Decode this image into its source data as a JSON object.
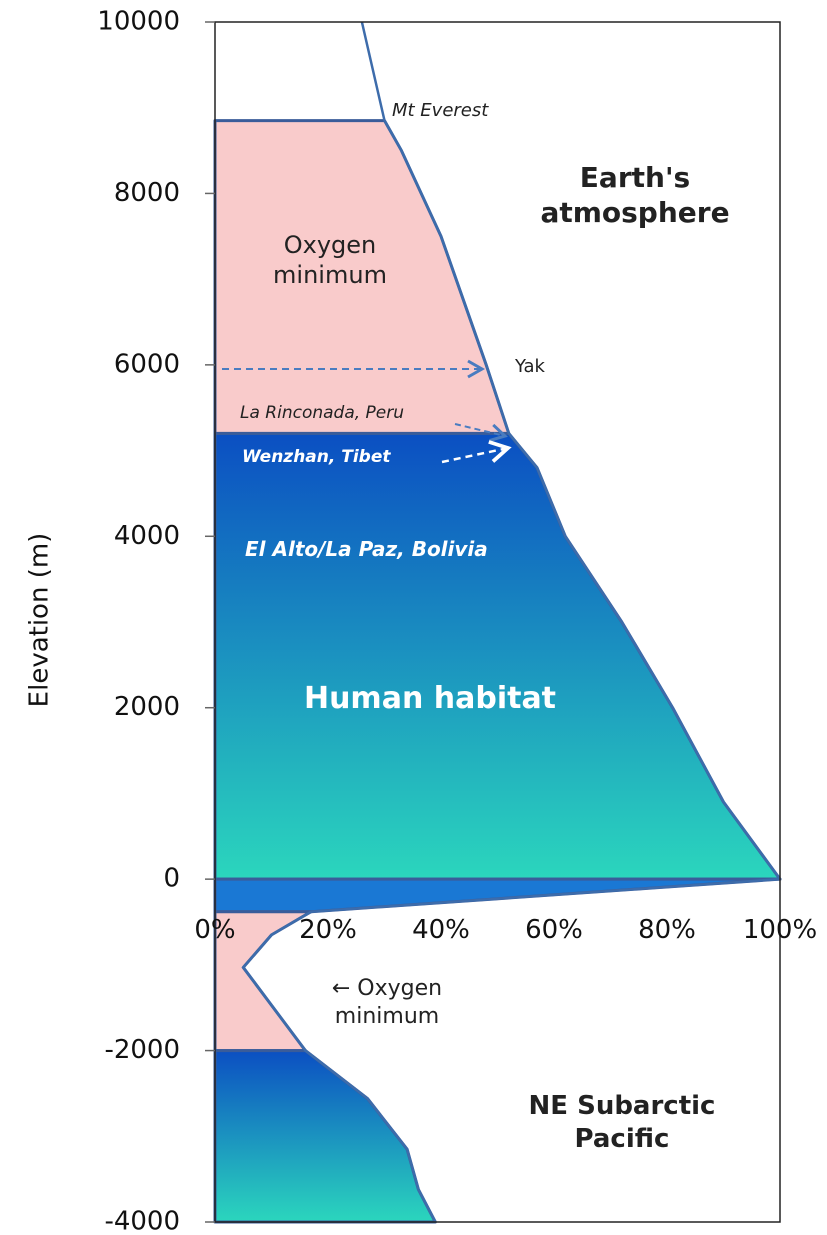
{
  "chart_data": {
    "type": "profile",
    "y_label": "Elevation (m)",
    "xlim": [
      0,
      100
    ],
    "ylim": [
      -4000,
      10000
    ],
    "xticks": [
      {
        "value": 0,
        "label": "0%"
      },
      {
        "value": 20,
        "label": "20%"
      },
      {
        "value": 40,
        "label": "40%"
      },
      {
        "value": 60,
        "label": "60%"
      },
      {
        "value": 80,
        "label": "80%"
      },
      {
        "value": 100,
        "label": "100%"
      }
    ],
    "yticks": [
      10000,
      8000,
      6000,
      4000,
      2000,
      0,
      -2000,
      -4000
    ],
    "series": [
      {
        "color": "#3d6cab",
        "x": [
          100,
          90,
          81,
          72,
          62,
          57,
          52,
          48,
          40,
          33,
          30,
          26
        ],
        "values": [
          0,
          900,
          2000,
          3000,
          4000,
          4800,
          5200,
          6000,
          7500,
          8500,
          8850,
          10000
        ]
      },
      {
        "color": "#3d6cab",
        "x": [
          100,
          17,
          10,
          5,
          16,
          27,
          34,
          36,
          39
        ],
        "values": [
          0,
          -380,
          -650,
          -1030,
          -2000,
          -2560,
          -3150,
          -3620,
          -4000
        ]
      }
    ],
    "bands": [
      {
        "series": 0,
        "from": 0,
        "to": 5200,
        "colors": [
          "#0b4fc2",
          "#2bd6bd"
        ]
      },
      {
        "series": 0,
        "from": 5200,
        "to": 8850,
        "colors": [
          "#f9cbcb"
        ]
      },
      {
        "series": 1,
        "from": 0,
        "to": -380,
        "colors": [
          "#1a78d4"
        ]
      },
      {
        "series": 1,
        "from": -380,
        "to": -2000,
        "colors": [
          "#f9cbcb"
        ]
      },
      {
        "series": 1,
        "from": -2000,
        "to": -4000,
        "colors": [
          "#0b4fc2",
          "#2bd6bd"
        ]
      }
    ],
    "annotations": [
      "Mt Everest",
      "Earth's atmosphere",
      "Oxygen minimum",
      "Yak",
      "La Rinconada, Peru",
      "Wenzhan, Tibet",
      "El Alto/La Paz, Bolivia",
      "Human habitat",
      "← Oxygen minimum",
      "NE Subarctic Pacific"
    ]
  }
}
